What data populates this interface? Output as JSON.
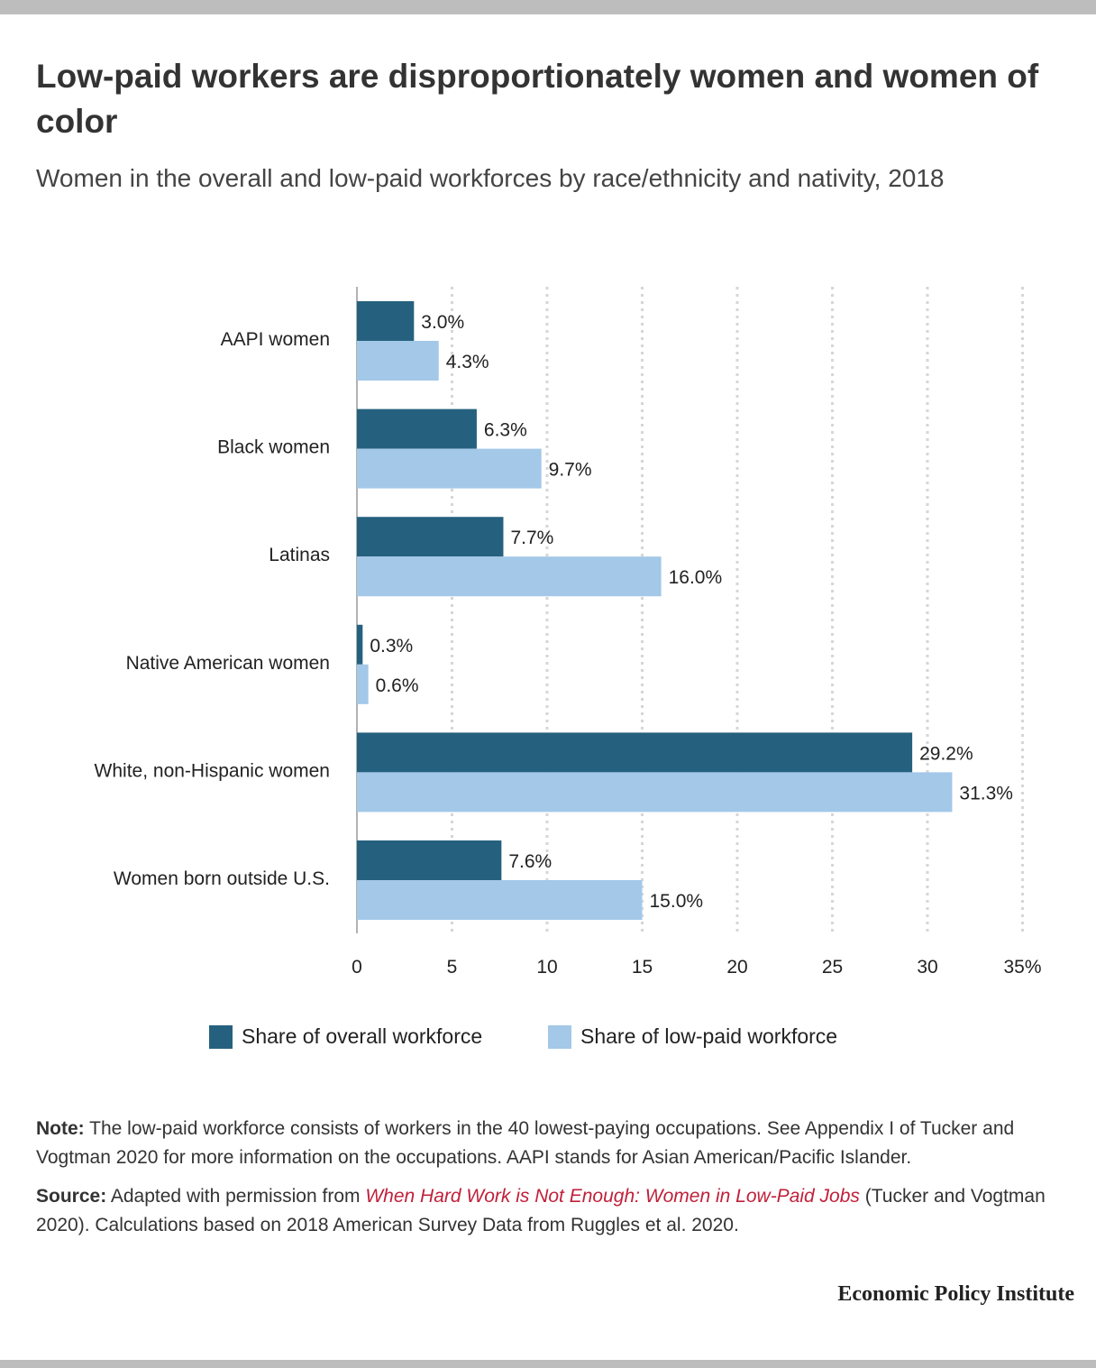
{
  "title": "Low-paid workers are disproportionately women and women of color",
  "subtitle": "Women in the overall and low-paid workforces by race/ethnicity and nativity, 2018",
  "chart_data": {
    "type": "bar",
    "orientation": "horizontal",
    "categories": [
      "AAPI women",
      "Black women",
      "Latinas",
      "Native American women",
      "White, non-Hispanic women",
      "Women born outside U.S."
    ],
    "series": [
      {
        "name": "Share of overall workforce",
        "values": [
          3.0,
          6.3,
          7.7,
          0.3,
          29.2,
          7.6
        ],
        "labels": [
          "3.0%",
          "6.3%",
          "7.7%",
          "0.3%",
          "29.2%",
          "7.6%"
        ],
        "color": "#25617f"
      },
      {
        "name": "Share of low-paid workforce",
        "values": [
          4.3,
          9.7,
          16.0,
          0.6,
          31.3,
          15.0
        ],
        "labels": [
          "4.3%",
          "9.7%",
          "16.0%",
          "0.6%",
          "31.3%",
          "15.0%"
        ],
        "color": "#a3c8e8"
      }
    ],
    "xlim": [
      0,
      35
    ],
    "xticks": [
      "0",
      "5",
      "10",
      "15",
      "20",
      "25",
      "30",
      "35%"
    ],
    "grid": "vertical dotted",
    "legend_position": "bottom"
  },
  "legend": {
    "overall": "Share of overall workforce",
    "lowpaid": "Share of low-paid workforce"
  },
  "note": {
    "label": "Note:",
    "text": "The low-paid workforce consists of workers in the 40 lowest-paying occupations. See Appendix I of Tucker and Vogtman 2020 for more information on the occupations. AAPI stands for Asian American/Pacific Islander."
  },
  "source": {
    "label": "Source:",
    "prefix": "Adapted with permission from",
    "link_text": "When Hard Work is Not Enough: Women in Low-Paid Jobs",
    "suffix": "(Tucker and Vogtman 2020). Calculations based on 2018 American Survey Data from Ruggles et al. 2020."
  },
  "brand": "Economic Policy Institute",
  "colors": {
    "overall": "#25617f",
    "lowpaid": "#a3c8e8",
    "topbar": "#bdbdbd",
    "link": "#c0203a"
  }
}
